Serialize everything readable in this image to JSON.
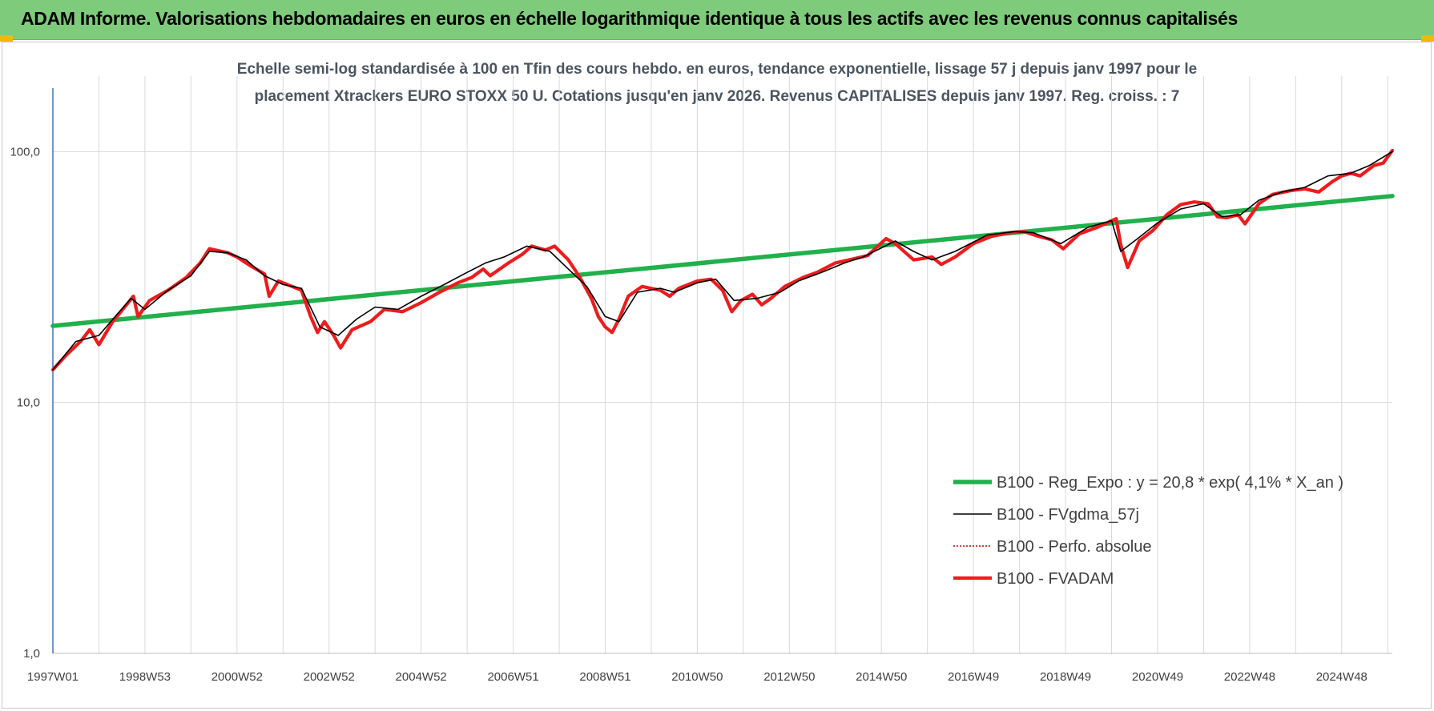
{
  "header": {
    "title": "ADAM Informe. Valorisations hebdomadaires en euros en échelle logarithmique identique à tous les actifs avec les revenus connus capitalisés"
  },
  "colors": {
    "banner": "#7ecb7b",
    "corner_marker": "#f2b807",
    "trend": "#21b04b",
    "smoothed": "#000000",
    "absolute": "#c00000",
    "adam": "#ee1c1c",
    "grid": "#d9d9d9",
    "axis": "#4472c4"
  },
  "chart_data": {
    "type": "line",
    "title_line1": "Echelle semi-log standardisée à 100 en Tfin des cours hebdo. en euros, tendance exponentielle, lissage 57 j depuis janv 1997 pour le",
    "title_line2": "placement Xtrackers EURO STOXX 50 U. Cotations jusqu'en janv 2026. Revenus CAPITALISES depuis janv 1997. Reg. croiss. : 7",
    "y_scale": "log",
    "ylim": [
      1,
      200
    ],
    "y_ticks": [
      1,
      10,
      100
    ],
    "y_tick_labels": [
      "1,0",
      "10,0",
      "100,0"
    ],
    "xlim": [
      1997.0,
      2026.1
    ],
    "x_tick_labels": [
      "1997W01",
      "1998W53",
      "2000W52",
      "2002W52",
      "2004W52",
      "2006W51",
      "2008W51",
      "2010W50",
      "2012W50",
      "2014W50",
      "2016W49",
      "2018W49",
      "2020W49",
      "2022W48",
      "2024W48"
    ],
    "x_tick_years": [
      1997.0,
      1999.0,
      2001.0,
      2003.0,
      2005.0,
      2007.0,
      2009.0,
      2011.0,
      2013.0,
      2015.0,
      2017.0,
      2019.0,
      2021.0,
      2023.0,
      2025.0
    ],
    "grid": true,
    "legend_position": "bottom-right",
    "series": [
      {
        "name": "B100 - Reg_Expo : y = 20,8 * exp( 4,1% *  X_an )",
        "key": "trend",
        "x": [
          1997.0,
          2026.1
        ],
        "y": [
          20.2,
          66.5
        ]
      },
      {
        "name": "B100 - FVgdma_57j",
        "key": "smoothed",
        "x": [
          1997.0,
          1997.5,
          1998.0,
          1998.4,
          1998.7,
          1999.0,
          1999.5,
          2000.0,
          2000.4,
          2000.8,
          2001.2,
          2001.6,
          2002.0,
          2002.4,
          2002.8,
          2003.2,
          2003.6,
          2004.0,
          2004.5,
          2005.0,
          2005.5,
          2006.0,
          2006.4,
          2006.8,
          2007.3,
          2007.8,
          2008.2,
          2008.6,
          2009.0,
          2009.3,
          2009.7,
          2010.2,
          2010.5,
          2011.0,
          2011.4,
          2011.8,
          2012.3,
          2012.8,
          2013.2,
          2013.7,
          2014.2,
          2014.6,
          2015.3,
          2015.7,
          2016.1,
          2016.6,
          2017.3,
          2017.9,
          2018.3,
          2018.9,
          2019.5,
          2020.0,
          2020.2,
          2020.6,
          2021.0,
          2021.5,
          2022.0,
          2022.4,
          2022.8,
          2023.2,
          2023.7,
          2024.2,
          2024.7,
          2025.2,
          2025.6,
          2026.1
        ],
        "y": [
          13.5,
          17.5,
          18.5,
          22.5,
          26.0,
          23.5,
          28.0,
          32.0,
          40.0,
          39.5,
          37.0,
          32.0,
          29.5,
          28.5,
          20.0,
          18.5,
          21.5,
          24.0,
          23.5,
          26.5,
          29.5,
          33.0,
          36.0,
          38.0,
          42.0,
          40.0,
          34.0,
          29.0,
          22.0,
          21.0,
          27.5,
          28.5,
          27.5,
          30.0,
          31.0,
          25.5,
          26.0,
          27.5,
          30.5,
          33.0,
          36.0,
          38.0,
          44.0,
          40.0,
          37.0,
          40.0,
          46.5,
          48.0,
          47.5,
          43.0,
          50.0,
          53.0,
          40.0,
          45.5,
          52.0,
          59.0,
          62.0,
          55.0,
          56.0,
          64.0,
          69.0,
          72.0,
          80.0,
          82.0,
          88.0,
          100.0
        ]
      },
      {
        "name": "B100 - Perfo. absolue",
        "key": "absolute",
        "x": [],
        "y": []
      },
      {
        "name": "B100 - FVADAM",
        "key": "adam",
        "x": [
          1997.0,
          1997.3,
          1997.6,
          1997.8,
          1998.0,
          1998.3,
          1998.6,
          1998.75,
          1998.85,
          1999.1,
          1999.5,
          1999.9,
          2000.2,
          2000.4,
          2000.8,
          2001.0,
          2001.3,
          2001.6,
          2001.7,
          2001.9,
          2002.2,
          2002.4,
          2002.6,
          2002.75,
          2002.9,
          2003.1,
          2003.25,
          2003.5,
          2003.9,
          2004.2,
          2004.6,
          2005.0,
          2005.4,
          2005.8,
          2006.1,
          2006.35,
          2006.5,
          2006.9,
          2007.2,
          2007.4,
          2007.7,
          2007.9,
          2008.2,
          2008.45,
          2008.7,
          2008.85,
          2009.0,
          2009.15,
          2009.3,
          2009.5,
          2009.8,
          2010.2,
          2010.4,
          2010.6,
          2011.0,
          2011.3,
          2011.55,
          2011.75,
          2011.95,
          2012.2,
          2012.4,
          2012.6,
          2012.9,
          2013.3,
          2013.6,
          2014.0,
          2014.3,
          2014.7,
          2015.1,
          2015.3,
          2015.7,
          2016.1,
          2016.3,
          2016.6,
          2017.0,
          2017.4,
          2017.8,
          2018.1,
          2018.4,
          2018.7,
          2018.95,
          2019.3,
          2019.7,
          2020.1,
          2020.2,
          2020.35,
          2020.6,
          2020.9,
          2021.2,
          2021.5,
          2021.8,
          2022.1,
          2022.3,
          2022.5,
          2022.75,
          2022.9,
          2023.2,
          2023.5,
          2023.9,
          2024.2,
          2024.5,
          2024.8,
          2025.0,
          2025.2,
          2025.4,
          2025.7,
          2025.9,
          2026.1
        ],
        "y": [
          13.5,
          15.5,
          17.5,
          19.5,
          17.0,
          21.0,
          24.5,
          26.5,
          22.0,
          25.5,
          28.0,
          31.5,
          36.0,
          41.0,
          39.5,
          38.0,
          35.0,
          32.5,
          26.5,
          30.5,
          29.0,
          28.0,
          22.0,
          19.0,
          21.0,
          18.5,
          16.5,
          19.5,
          21.0,
          23.5,
          23.0,
          25.0,
          27.5,
          30.0,
          31.5,
          34.0,
          32.0,
          36.0,
          39.0,
          42.0,
          40.5,
          42.0,
          37.0,
          31.5,
          26.0,
          22.0,
          20.0,
          19.0,
          21.5,
          26.5,
          29.0,
          28.0,
          26.5,
          28.5,
          30.5,
          31.0,
          28.0,
          23.0,
          25.5,
          27.0,
          24.5,
          26.0,
          29.0,
          31.5,
          33.0,
          36.0,
          37.0,
          38.5,
          45.0,
          43.0,
          37.0,
          38.0,
          35.5,
          38.0,
          43.0,
          46.0,
          47.5,
          48.0,
          46.0,
          44.5,
          41.0,
          47.0,
          50.0,
          54.0,
          42.5,
          34.5,
          44.0,
          48.5,
          56.0,
          61.5,
          63.0,
          62.0,
          55.0,
          54.5,
          56.0,
          51.5,
          62.0,
          67.5,
          70.0,
          71.0,
          69.0,
          76.0,
          80.0,
          82.0,
          80.0,
          88.0,
          90.0,
          101.0
        ]
      }
    ]
  }
}
